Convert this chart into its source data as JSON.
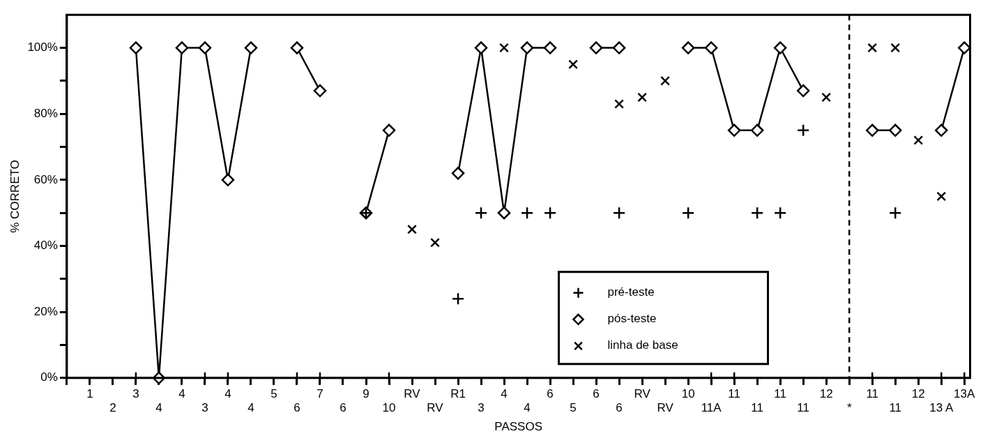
{
  "chart_data": {
    "type": "line",
    "xlabel": "PASSOS",
    "ylabel": "% CORRETO",
    "categories": [
      "1",
      "2",
      "3",
      "4",
      "4",
      "3",
      "4",
      "4",
      "5",
      "6",
      "7",
      "6",
      "9",
      "10",
      "RV",
      "RV",
      "R1",
      "3",
      "4",
      "4",
      "6",
      "5",
      "6",
      "6",
      "RV",
      "RV",
      "10",
      "11A",
      "11",
      "11",
      "11",
      "11",
      "12",
      "*",
      "11",
      "11",
      "12",
      "13 A",
      "13A"
    ],
    "series": [
      {
        "name": "pré-teste",
        "type": "scatter",
        "color": "#000000",
        "marker": "cross",
        "values": [
          null,
          null,
          0,
          null,
          null,
          0,
          0,
          null,
          null,
          0,
          0,
          null,
          50,
          0,
          null,
          null,
          24,
          50,
          null,
          50,
          50,
          null,
          null,
          50,
          null,
          null,
          50,
          0,
          0,
          50,
          50,
          75,
          null,
          null,
          0,
          50,
          null,
          0,
          0
        ]
      },
      {
        "name": "pós-teste",
        "type": "line",
        "color": "#000000",
        "marker": "diamond",
        "line_style": "solid",
        "values": [
          null,
          null,
          100,
          0,
          100,
          100,
          60,
          100,
          null,
          100,
          87,
          null,
          50,
          75,
          null,
          null,
          62,
          100,
          50,
          100,
          100,
          null,
          100,
          100,
          null,
          null,
          100,
          100,
          75,
          75,
          100,
          87,
          null,
          null,
          75,
          75,
          null,
          75,
          100
        ]
      },
      {
        "name": "linha de base",
        "type": "scatter",
        "color": "#000000",
        "marker": "x",
        "values": [
          null,
          null,
          null,
          null,
          null,
          null,
          null,
          null,
          null,
          null,
          null,
          null,
          null,
          null,
          45,
          41,
          null,
          null,
          100,
          null,
          null,
          95,
          null,
          83,
          85,
          90,
          null,
          null,
          null,
          null,
          null,
          null,
          85,
          null,
          100,
          100,
          72,
          55,
          null
        ]
      }
    ],
    "ylim": [
      0,
      110
    ],
    "yticks": [
      {
        "value": 0,
        "label": "0%"
      },
      {
        "value": 10,
        "label": null
      },
      {
        "value": 20,
        "label": "20%"
      },
      {
        "value": 30,
        "label": null
      },
      {
        "value": 40,
        "label": "40%"
      },
      {
        "value": 50,
        "label": null
      },
      {
        "value": 60,
        "label": "60%"
      },
      {
        "value": 70,
        "label": null
      },
      {
        "value": 80,
        "label": "80%"
      },
      {
        "value": 90,
        "label": null
      },
      {
        "value": 100,
        "label": "100%"
      }
    ],
    "ref_lines": [
      {
        "axis": "x",
        "value": "*",
        "line_style": "dashed",
        "color": "#000000"
      }
    ],
    "grid": false,
    "legend": "bottom right"
  }
}
